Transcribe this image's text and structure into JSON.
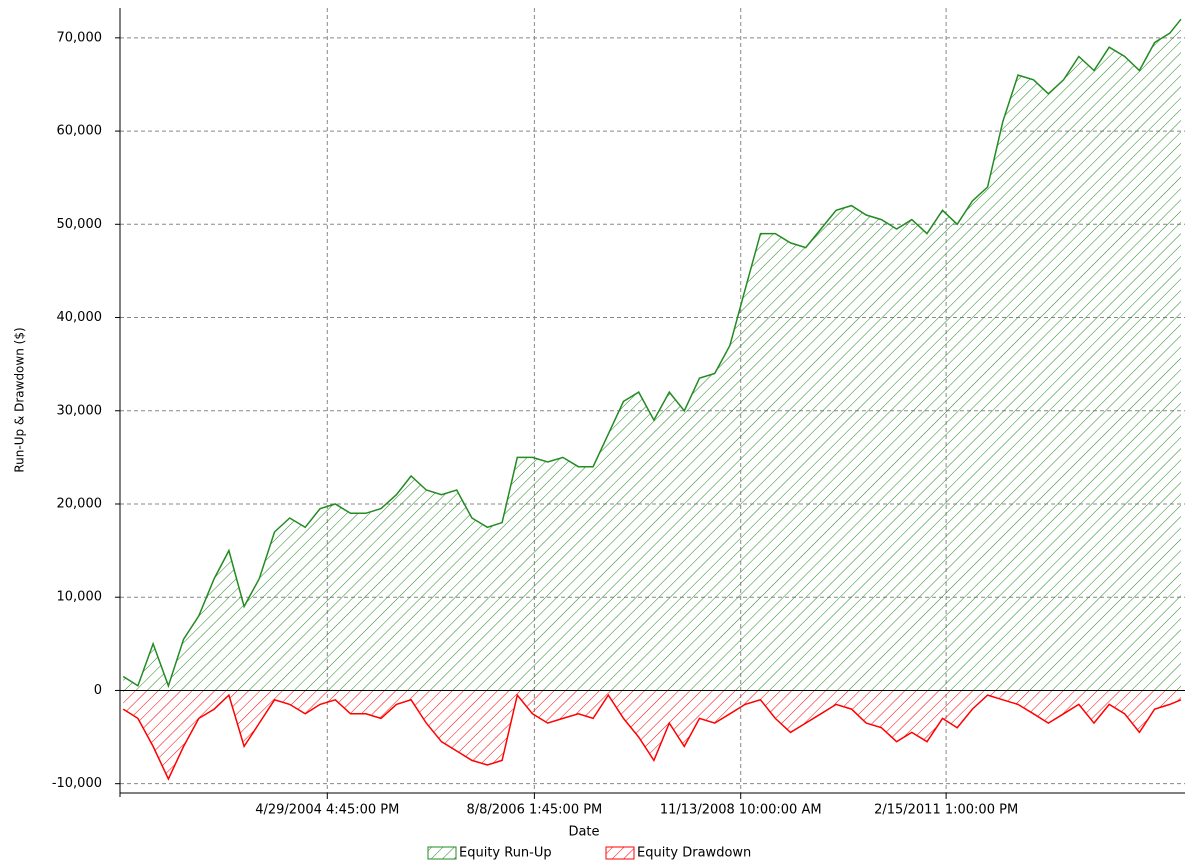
{
  "chart_data": {
    "type": "area",
    "xlabel": "Date",
    "ylabel": "Run-Up & Drawdown ($)",
    "x": [
      "2002-02-01",
      "2002-04-01",
      "2002-06-01",
      "2002-08-01",
      "2002-10-01",
      "2002-12-01",
      "2003-02-01",
      "2003-04-01",
      "2003-06-01",
      "2003-08-01",
      "2003-10-01",
      "2003-12-01",
      "2004-02-01",
      "2004-04-01",
      "2004-06-01",
      "2004-08-01",
      "2004-10-01",
      "2004-12-01",
      "2005-02-01",
      "2005-04-01",
      "2005-06-01",
      "2005-08-01",
      "2005-10-01",
      "2005-12-01",
      "2006-02-01",
      "2006-04-01",
      "2006-06-01",
      "2006-08-01",
      "2006-10-01",
      "2006-12-01",
      "2007-02-01",
      "2007-04-01",
      "2007-06-01",
      "2007-08-01",
      "2007-10-01",
      "2007-12-01",
      "2008-02-01",
      "2008-04-01",
      "2008-06-01",
      "2008-08-01",
      "2008-10-01",
      "2008-12-01",
      "2009-02-01",
      "2009-04-01",
      "2009-06-01",
      "2009-08-01",
      "2009-10-01",
      "2009-12-01",
      "2010-02-01",
      "2010-04-01",
      "2010-06-01",
      "2010-08-01",
      "2010-10-01",
      "2010-12-01",
      "2011-02-01",
      "2011-04-01",
      "2011-06-01",
      "2011-08-01",
      "2011-10-01",
      "2011-12-01",
      "2012-02-01",
      "2012-04-01",
      "2012-06-01",
      "2012-08-01",
      "2012-10-01",
      "2012-12-01",
      "2013-02-01",
      "2013-04-01",
      "2013-06-01",
      "2013-08-01",
      "2013-09-15"
    ],
    "series": [
      {
        "name": "Equity Run-Up",
        "color": "#228b22",
        "values": [
          1500,
          500,
          5000,
          500,
          5500,
          8000,
          12000,
          15000,
          9000,
          12000,
          17000,
          18500,
          17500,
          19500,
          20000,
          19000,
          19000,
          19500,
          21000,
          23000,
          21500,
          21000,
          21500,
          18500,
          17500,
          18000,
          25000,
          25000,
          24500,
          25000,
          24000,
          24000,
          27500,
          31000,
          32000,
          29000,
          32000,
          30000,
          33500,
          34000,
          37000,
          43000,
          49000,
          49000,
          48000,
          47500,
          49500,
          51500,
          52000,
          51000,
          50500,
          49500,
          50500,
          49000,
          51500,
          50000,
          52500,
          54000,
          61000,
          66000,
          65500,
          64000,
          65500,
          68000,
          66500,
          69000,
          68000,
          66500,
          69500,
          70500,
          72000
        ]
      },
      {
        "name": "Equity Drawdown",
        "color": "#ff0000",
        "values": [
          -2000,
          -3000,
          -6000,
          -9500,
          -6000,
          -3000,
          -2000,
          -500,
          -6000,
          -3500,
          -1000,
          -1500,
          -2500,
          -1500,
          -1000,
          -2500,
          -2500,
          -3000,
          -1500,
          -1000,
          -3500,
          -5500,
          -6500,
          -7500,
          -8000,
          -7500,
          -500,
          -2500,
          -3500,
          -3000,
          -2500,
          -3000,
          -500,
          -3000,
          -5000,
          -7500,
          -3500,
          -6000,
          -3000,
          -3500,
          -2500,
          -1500,
          -1000,
          -3000,
          -4500,
          -3500,
          -2500,
          -1500,
          -2000,
          -3500,
          -4000,
          -5500,
          -4500,
          -5500,
          -3000,
          -4000,
          -2000,
          -500,
          -1000,
          -1500,
          -2500,
          -3500,
          -2500,
          -1500,
          -3500,
          -1500,
          -2500,
          -4500,
          -2000,
          -1500,
          -1000
        ]
      }
    ],
    "xlim": [
      "2002-01-19",
      "2013-10-01"
    ],
    "xticks": [
      {
        "value": "2004-04-29T16:45",
        "label": "4/29/2004 4:45:00 PM"
      },
      {
        "value": "2006-08-08T13:45",
        "label": "8/8/2006 1:45:00 PM"
      },
      {
        "value": "2008-11-13T10:00",
        "label": "11/13/2008 10:00:00 AM"
      },
      {
        "value": "2011-02-15T13:00",
        "label": "2/15/2011 1:00:00 PM"
      }
    ],
    "ylim": [
      -11000,
      73200
    ],
    "yticks": [
      {
        "value": -10000,
        "label": "-10,000"
      },
      0,
      {
        "value": 10000,
        "label": "10,000"
      },
      {
        "value": 20000,
        "label": "20,000"
      },
      {
        "value": 30000,
        "label": "30,000"
      },
      {
        "value": 40000,
        "label": "40,000"
      },
      {
        "value": 50000,
        "label": "50,000"
      },
      {
        "value": 60000,
        "label": "60,000"
      },
      {
        "value": 70000,
        "label": "70,000"
      }
    ],
    "grid": true
  }
}
